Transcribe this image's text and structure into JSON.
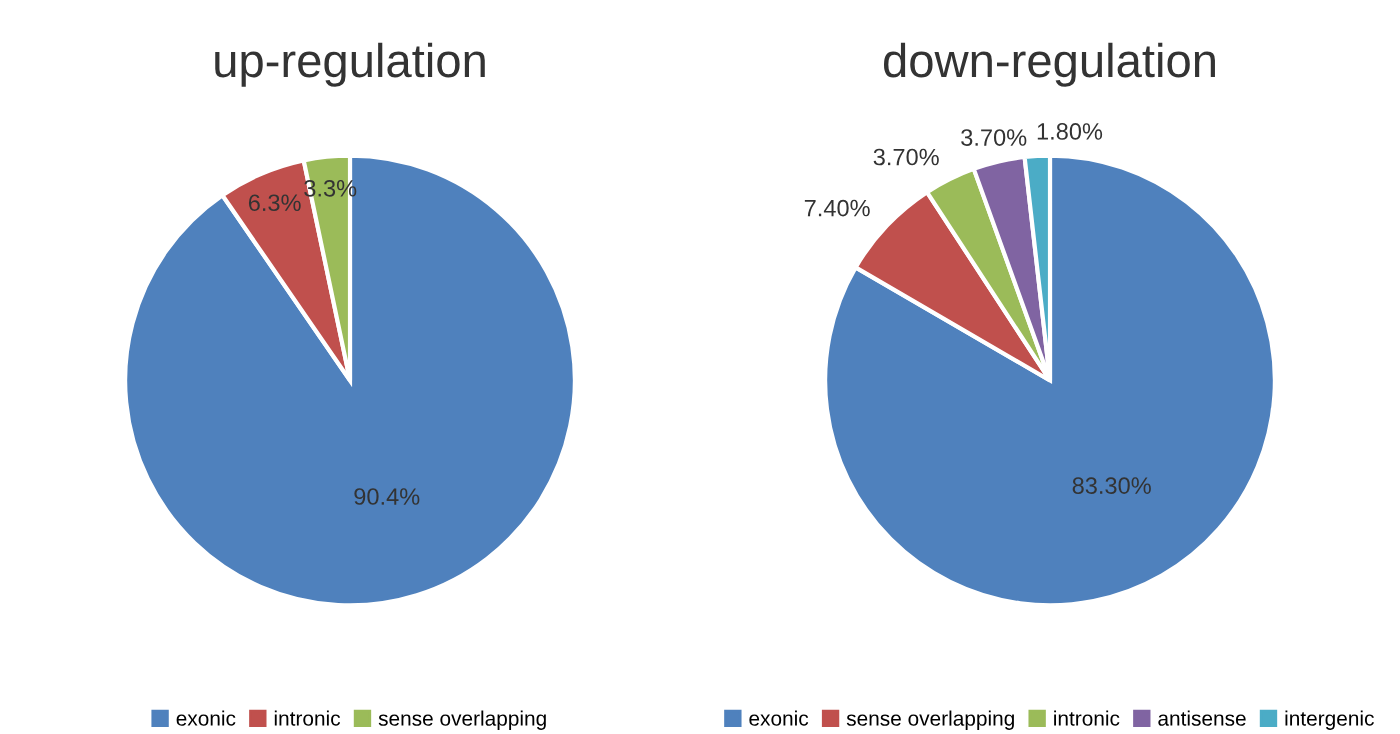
{
  "chart_data": [
    {
      "type": "pie",
      "title": "up-regulation",
      "categories": [
        "exonic",
        "intronic",
        "sense overlapping"
      ],
      "values": [
        90.4,
        6.3,
        3.3
      ],
      "colors": [
        "#4f81bd",
        "#c0504d",
        "#9bbb59"
      ],
      "value_labels": [
        "90.4%",
        "6.3%",
        "3.3%"
      ],
      "legend": "bottom"
    },
    {
      "type": "pie",
      "title": "down-regulation",
      "categories": [
        "exonic",
        "sense overlapping",
        "intronic",
        "antisense",
        "intergenic"
      ],
      "values": [
        83.3,
        7.4,
        3.7,
        3.7,
        1.8
      ],
      "colors": [
        "#4f81bd",
        "#c0504d",
        "#9bbb59",
        "#8064a2",
        "#4bacc6"
      ],
      "value_labels": [
        "83.30%",
        "7.40%",
        "3.70%",
        "3.70%",
        "1.80%"
      ],
      "legend": "bottom"
    }
  ]
}
